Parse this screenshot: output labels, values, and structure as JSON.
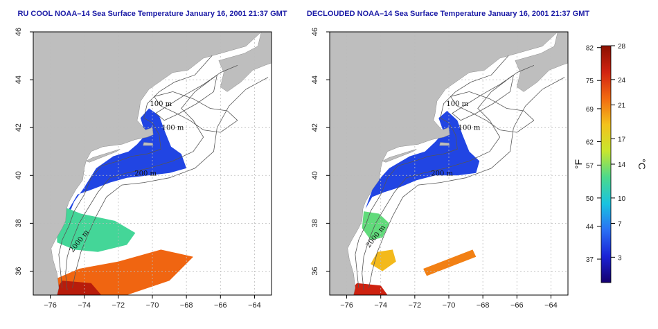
{
  "colors": {
    "land": "#bebebe",
    "ocean": "#ffffff",
    "frame": "#000000",
    "grid": "#bcbcbc",
    "contour": "#555555",
    "title": "#1a1aa6"
  },
  "colorbar": {
    "fahrenheit_ticks": [
      "82",
      "75",
      "69",
      "62",
      "57",
      "50",
      "44",
      "37"
    ],
    "celsius_ticks": [
      "28",
      "24",
      "21",
      "17",
      "14",
      "10",
      "7",
      "3"
    ],
    "f_unit": "°F",
    "c_unit": "°C",
    "range_c": [
      0,
      28
    ],
    "stops": [
      "#15006e",
      "#1a22d6",
      "#2a70f4",
      "#19c3e0",
      "#4bd98c",
      "#c8e62e",
      "#f3c21c",
      "#f26a11",
      "#d12311",
      "#8a1000"
    ]
  },
  "chart_data": [
    {
      "type": "heatmap",
      "title": "RU COOL NOAA–14 Sea Surface Temperature January 16, 2001 21:37 GMT",
      "xlim": [
        -77,
        -63
      ],
      "ylim": [
        35,
        46
      ],
      "x_ticks": [
        "−76",
        "−74",
        "−72",
        "−70",
        "−68",
        "−66",
        "−64"
      ],
      "x_tick_values": [
        -76,
        -74,
        -72,
        -70,
        -68,
        -66,
        -64
      ],
      "y_ticks": [
        "36",
        "38",
        "40",
        "42",
        "44",
        "46"
      ],
      "y_tick_values": [
        36,
        38,
        40,
        42,
        44,
        46
      ],
      "grid": true,
      "contour_labels": [
        {
          "text": "100 m",
          "lon": -69.5,
          "lat": 42.9
        },
        {
          "text": "100 m",
          "lon": -68.8,
          "lat": 41.9
        },
        {
          "text": "200 m",
          "lon": -70.4,
          "lat": 40.0
        },
        {
          "text": "2000 m",
          "lon": -74.2,
          "lat": 37.2
        }
      ],
      "regions": [
        {
          "polygon": [
            [
              -70.7,
              42.4
            ],
            [
              -70.2,
              42.8
            ],
            [
              -69.6,
              42.5
            ],
            [
              -69.3,
              41.9
            ],
            [
              -68.9,
              41.2
            ],
            [
              -68.3,
              40.9
            ],
            [
              -68.0,
              40.3
            ],
            [
              -69.0,
              40.1
            ],
            [
              -70.2,
              40.0
            ],
            [
              -71.5,
              39.9
            ],
            [
              -72.5,
              39.7
            ],
            [
              -73.6,
              39.4
            ],
            [
              -74.4,
              39.2
            ],
            [
              -74.9,
              38.6
            ],
            [
              -75.0,
              38.2
            ],
            [
              -74.6,
              38.9
            ],
            [
              -74.0,
              39.5
            ],
            [
              -73.3,
              40.3
            ],
            [
              -72.3,
              40.8
            ],
            [
              -71.4,
              41.0
            ],
            [
              -70.9,
              41.3
            ],
            [
              -70.4,
              41.7
            ]
          ],
          "temp_c": 4.5
        },
        {
          "polygon": [
            [
              -75.6,
              38.8
            ],
            [
              -74.2,
              38.4
            ],
            [
              -72.2,
              38.1
            ],
            [
              -71.0,
              37.6
            ],
            [
              -71.5,
              37.1
            ],
            [
              -73.2,
              36.8
            ],
            [
              -74.6,
              36.9
            ],
            [
              -75.6,
              37.2
            ]
          ],
          "temp_c": 12
        },
        {
          "polygon": [
            [
              -76.0,
              35.0
            ],
            [
              -71.5,
              35.0
            ],
            [
              -69.0,
              35.6
            ],
            [
              -67.6,
              36.6
            ],
            [
              -69.5,
              36.9
            ],
            [
              -72.0,
              36.4
            ],
            [
              -74.3,
              36.1
            ],
            [
              -75.6,
              35.7
            ]
          ],
          "temp_c": 22
        },
        {
          "polygon": [
            [
              -75.9,
              35.0
            ],
            [
              -73.0,
              35.0
            ],
            [
              -73.6,
              35.5
            ],
            [
              -75.3,
              35.6
            ]
          ],
          "temp_c": 26
        }
      ]
    },
    {
      "type": "heatmap",
      "title": "DECLOUDED NOAA–14 Sea Surface Temperature January 16, 2001 21:37 GMT",
      "xlim": [
        -77,
        -63
      ],
      "ylim": [
        35,
        46
      ],
      "x_ticks": [
        "−76",
        "−74",
        "−72",
        "−70",
        "−68",
        "−66",
        "−64"
      ],
      "x_tick_values": [
        -76,
        -74,
        -72,
        -70,
        -68,
        -66,
        -64
      ],
      "y_ticks": [
        "36",
        "38",
        "40",
        "42",
        "44",
        "46"
      ],
      "y_tick_values": [
        36,
        38,
        40,
        42,
        44,
        46
      ],
      "grid": true,
      "contour_labels": [
        {
          "text": "100 m",
          "lon": -69.5,
          "lat": 42.9
        },
        {
          "text": "100 m",
          "lon": -68.8,
          "lat": 41.9
        },
        {
          "text": "200 m",
          "lon": -70.4,
          "lat": 40.0
        },
        {
          "text": "2000 m",
          "lon": -74.2,
          "lat": 37.4
        }
      ],
      "regions": [
        {
          "polygon": [
            [
              -70.6,
              42.4
            ],
            [
              -70.1,
              42.7
            ],
            [
              -69.5,
              42.3
            ],
            [
              -69.2,
              41.7
            ],
            [
              -68.8,
              41.0
            ],
            [
              -68.2,
              40.6
            ],
            [
              -68.4,
              40.1
            ],
            [
              -69.5,
              40.0
            ],
            [
              -70.8,
              40.0
            ],
            [
              -71.9,
              39.8
            ],
            [
              -72.9,
              39.5
            ],
            [
              -73.8,
              39.3
            ],
            [
              -74.5,
              39.1
            ],
            [
              -74.9,
              38.6
            ],
            [
              -74.4,
              39.6
            ],
            [
              -73.5,
              40.3
            ],
            [
              -72.3,
              40.8
            ],
            [
              -71.4,
              41.0
            ],
            [
              -70.8,
              41.4
            ],
            [
              -70.3,
              41.8
            ]
          ],
          "temp_c": 4.5
        },
        {
          "polygon": [
            [
              -75.0,
              38.5
            ],
            [
              -74.1,
              38.4
            ],
            [
              -73.5,
              38.0
            ],
            [
              -73.9,
              37.4
            ],
            [
              -74.6,
              37.3
            ],
            [
              -75.1,
              37.8
            ]
          ],
          "temp_c": 13
        },
        {
          "polygon": [
            [
              -74.2,
              36.8
            ],
            [
              -73.3,
              36.9
            ],
            [
              -73.1,
              36.4
            ],
            [
              -73.9,
              36.0
            ],
            [
              -74.6,
              36.3
            ]
          ],
          "temp_c": 19
        },
        {
          "polygon": [
            [
              -76.0,
              35.0
            ],
            [
              -73.6,
              35.0
            ],
            [
              -74.0,
              35.4
            ],
            [
              -75.4,
              35.5
            ]
          ],
          "temp_c": 25
        },
        {
          "polygon": [
            [
              -71.5,
              36.1
            ],
            [
              -68.6,
              36.9
            ],
            [
              -68.4,
              36.6
            ],
            [
              -71.3,
              35.8
            ]
          ],
          "temp_c": 21
        }
      ]
    }
  ]
}
